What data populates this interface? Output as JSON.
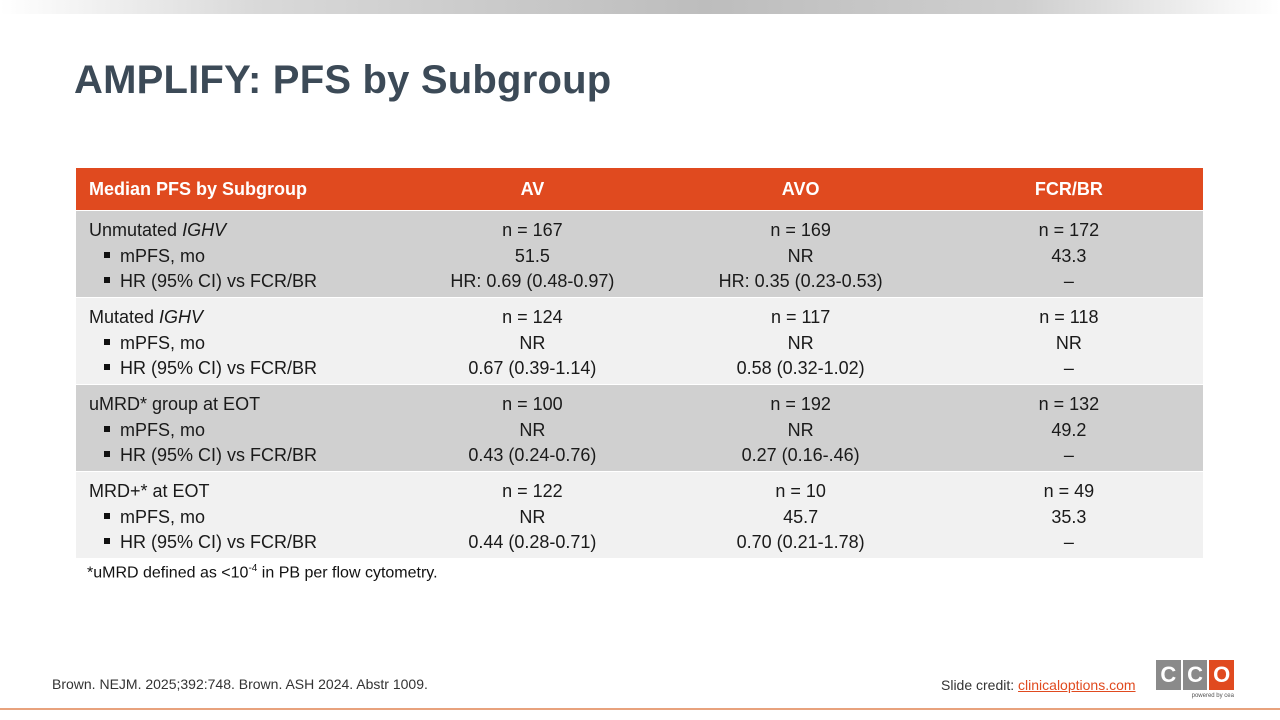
{
  "title": "AMPLIFY: PFS by Subgroup",
  "table": {
    "headers": [
      "Median PFS by Subgroup",
      "AV",
      "AVO",
      "FCR/BR"
    ],
    "groups": [
      {
        "label": "Unmutated ",
        "label_em": "IGHV",
        "row_labels": [
          "mPFS, mo",
          "HR (95% CI) vs FCR/BR"
        ],
        "av": [
          "n = 167",
          "51.5",
          "HR: 0.69 (0.48-0.97)"
        ],
        "avo": [
          "n = 169",
          "NR",
          "HR: 0.35 (0.23-0.53)"
        ],
        "fcr": [
          "n = 172",
          "43.3",
          "–"
        ]
      },
      {
        "label": "Mutated ",
        "label_em": "IGHV",
        "row_labels": [
          "mPFS, mo",
          "HR (95% CI) vs FCR/BR"
        ],
        "av": [
          "n = 124",
          "NR",
          "0.67 (0.39-1.14)"
        ],
        "avo": [
          "n = 117",
          "NR",
          "0.58 (0.32-1.02)"
        ],
        "fcr": [
          "n = 118",
          "NR",
          "–"
        ]
      },
      {
        "label": "uMRD* group at EOT",
        "label_em": "",
        "row_labels": [
          "mPFS, mo",
          "HR (95% CI) vs FCR/BR"
        ],
        "av": [
          "n = 100",
          "NR",
          "0.43 (0.24-0.76)"
        ],
        "avo": [
          "n = 192",
          "NR",
          "0.27 (0.16-.46)"
        ],
        "fcr": [
          "n = 132",
          "49.2",
          "–"
        ]
      },
      {
        "label": "MRD+* at EOT",
        "label_em": "",
        "row_labels": [
          "mPFS, mo",
          "HR (95% CI) vs FCR/BR"
        ],
        "av": [
          "n = 122",
          "NR",
          "0.44 (0.28-0.71)"
        ],
        "avo": [
          "n = 10",
          "45.7",
          "0.70 (0.21-1.78)"
        ],
        "fcr": [
          "n = 49",
          "35.3",
          "–"
        ]
      }
    ]
  },
  "footnote": {
    "before": "*uMRD defined as <10",
    "sup": "-4",
    "after": " in PB per flow cytometry."
  },
  "references": "Brown. NEJM. 2025;392:748. Brown. ASH 2024. Abstr 1009.",
  "credit": {
    "label": "Slide credit: ",
    "link": "clinicaloptions.com"
  },
  "logo": {
    "letters": [
      "C",
      "C",
      "O"
    ],
    "tagline": "powered by cea"
  },
  "colors": {
    "accent": "#e04a1f",
    "title": "#3c4a57",
    "row_dark": "#d0d0d0",
    "row_light": "#f1f1f1"
  }
}
